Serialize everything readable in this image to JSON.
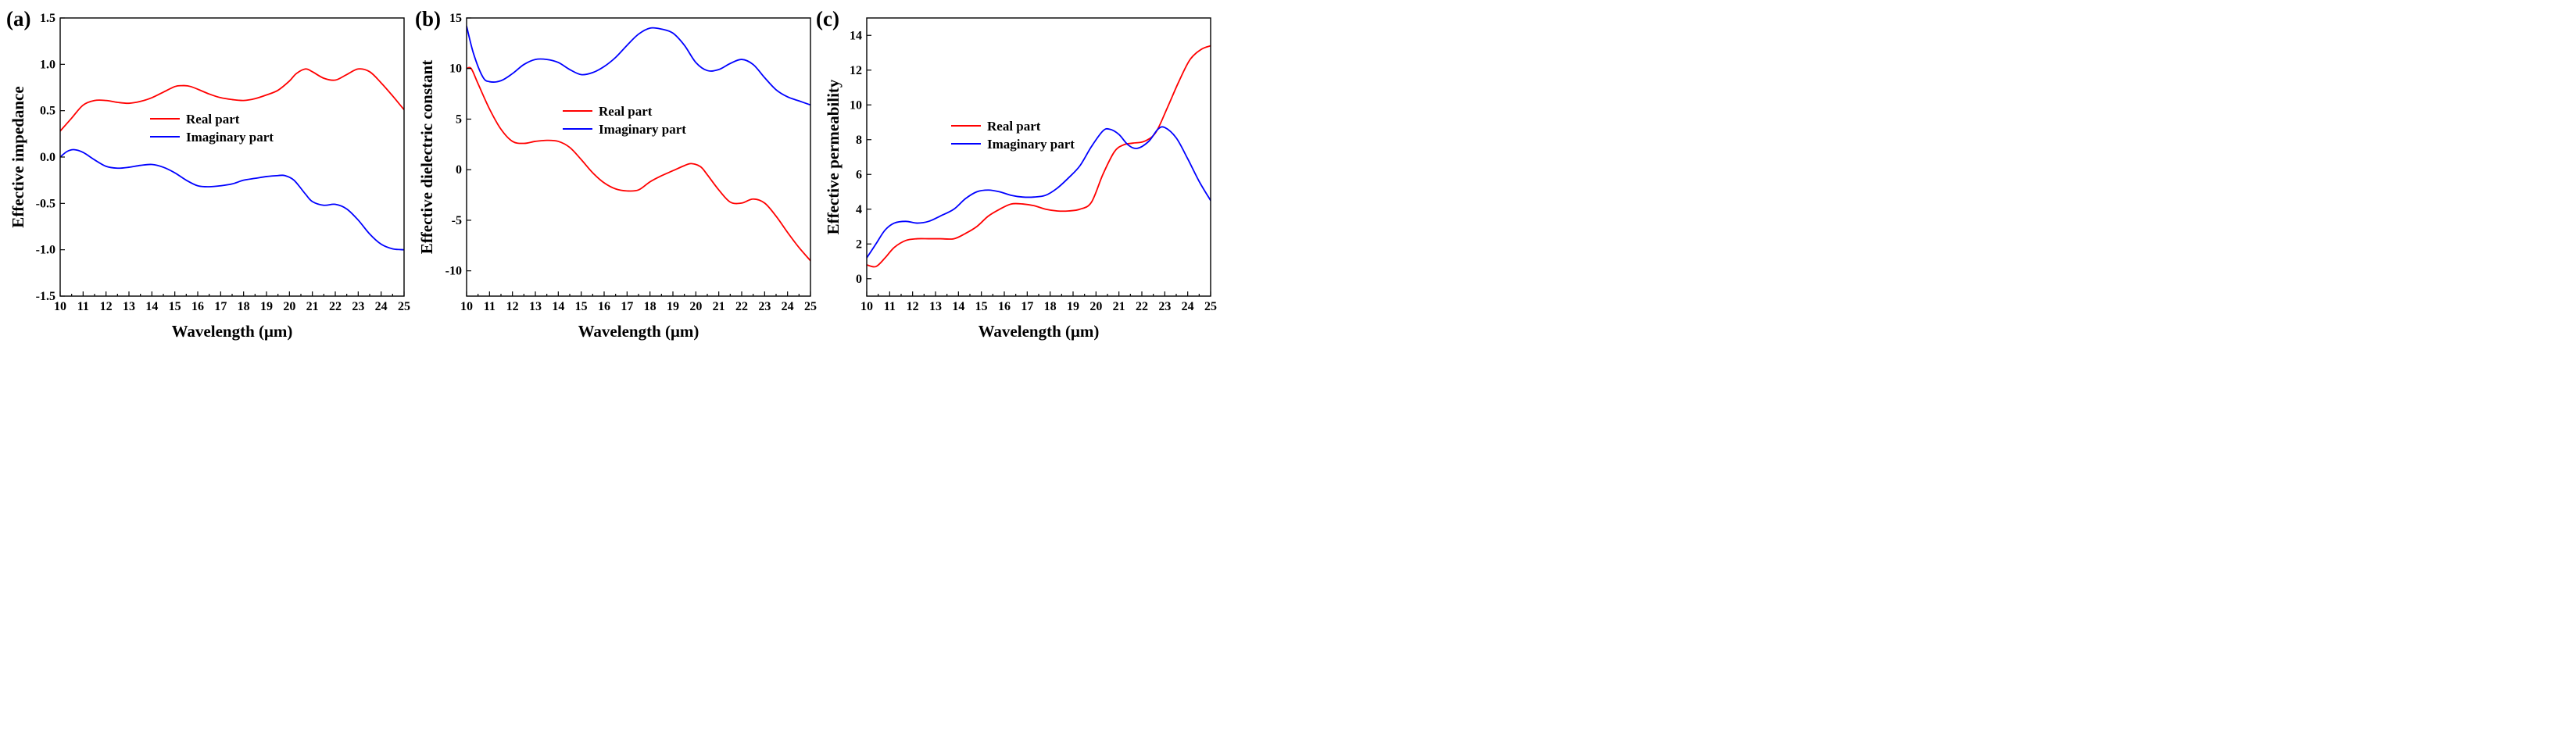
{
  "colors": {
    "real": "#ff0000",
    "imag": "#0000ff",
    "axis": "#000000"
  },
  "chart_data": [
    {
      "type": "line",
      "panel_label": "(a)",
      "xlabel": "Wavelength (μm)",
      "ylabel": "Effective impedance",
      "xlim": [
        10,
        25
      ],
      "ylim": [
        -1.5,
        1.5
      ],
      "x_ticks": [
        10,
        11,
        12,
        13,
        14,
        15,
        16,
        17,
        18,
        19,
        20,
        21,
        22,
        23,
        24,
        25
      ],
      "x_tick_labels": [
        "10",
        "11",
        "12",
        "13",
        "14",
        "15",
        "16",
        "17",
        "18",
        "19",
        "20",
        "21",
        "22",
        "23",
        "24",
        "25"
      ],
      "y_ticks": [
        -1.5,
        -1.0,
        -0.5,
        0.0,
        0.5,
        1.0,
        1.5
      ],
      "y_tick_labels": [
        "-1.5",
        "-1.0",
        "-0.5",
        "0.0",
        "0.5",
        "1.0",
        "1.5"
      ],
      "legend_position": "center",
      "series": [
        {
          "name": "Real part",
          "color": "#ff0000",
          "x": [
            10,
            10.5,
            11,
            11.5,
            12,
            12.5,
            13,
            13.5,
            14,
            14.5,
            15,
            15.3,
            15.7,
            16.5,
            17,
            17.5,
            18,
            18.5,
            19,
            19.5,
            20,
            20.3,
            20.7,
            21,
            21.5,
            22,
            22.5,
            23,
            23.5,
            24,
            24.5,
            25
          ],
          "values": [
            0.28,
            0.42,
            0.56,
            0.61,
            0.61,
            0.59,
            0.58,
            0.6,
            0.64,
            0.7,
            0.76,
            0.77,
            0.76,
            0.68,
            0.64,
            0.62,
            0.61,
            0.63,
            0.67,
            0.72,
            0.82,
            0.9,
            0.95,
            0.92,
            0.85,
            0.83,
            0.89,
            0.95,
            0.92,
            0.8,
            0.66,
            0.51
          ]
        },
        {
          "name": "Imaginary part",
          "color": "#0000ff",
          "x": [
            10,
            10.3,
            10.6,
            11,
            11.5,
            12,
            12.5,
            13,
            13.5,
            14,
            14.5,
            15,
            15.5,
            16,
            16.5,
            17,
            17.5,
            18,
            18.5,
            19,
            19.5,
            19.8,
            20.2,
            20.7,
            21,
            21.5,
            22,
            22.5,
            23,
            23.5,
            24,
            24.5,
            25
          ],
          "values": [
            0.0,
            0.06,
            0.08,
            0.05,
            -0.03,
            -0.1,
            -0.12,
            -0.11,
            -0.09,
            -0.08,
            -0.11,
            -0.17,
            -0.25,
            -0.31,
            -0.32,
            -0.31,
            -0.29,
            -0.25,
            -0.23,
            -0.21,
            -0.2,
            -0.2,
            -0.25,
            -0.4,
            -0.48,
            -0.52,
            -0.51,
            -0.56,
            -0.68,
            -0.83,
            -0.94,
            -0.99,
            -1.0
          ]
        }
      ]
    },
    {
      "type": "line",
      "panel_label": "(b)",
      "xlabel": "Wavelength (μm)",
      "ylabel": "Effective dielectric constant",
      "xlim": [
        10,
        25
      ],
      "ylim": [
        -12.5,
        15
      ],
      "x_ticks": [
        10,
        11,
        12,
        13,
        14,
        15,
        16,
        17,
        18,
        19,
        20,
        21,
        22,
        23,
        24,
        25
      ],
      "x_tick_labels": [
        "10",
        "11",
        "12",
        "13",
        "14",
        "15",
        "16",
        "17",
        "18",
        "19",
        "20",
        "21",
        "22",
        "23",
        "24",
        "25"
      ],
      "y_ticks": [
        -10,
        -5,
        0,
        5,
        10,
        15
      ],
      "y_tick_labels": [
        "-10",
        "-5",
        "0",
        "5",
        "10",
        "15"
      ],
      "legend_position": "center",
      "series": [
        {
          "name": "Real part",
          "color": "#ff0000",
          "x": [
            10,
            10.2,
            10.5,
            11,
            11.5,
            12,
            12.5,
            13,
            13.5,
            14,
            14.5,
            15,
            15.5,
            16,
            16.5,
            17,
            17.5,
            18,
            18.5,
            19,
            19.5,
            19.8,
            20.2,
            20.5,
            21,
            21.5,
            22,
            22.5,
            23,
            23.5,
            24,
            24.5,
            25
          ],
          "values": [
            10,
            10,
            8.5,
            6.0,
            4.0,
            2.8,
            2.6,
            2.8,
            2.9,
            2.8,
            2.2,
            1.0,
            -0.3,
            -1.3,
            -1.9,
            -2.1,
            -2.0,
            -1.2,
            -0.6,
            -0.1,
            0.4,
            0.6,
            0.3,
            -0.5,
            -2.0,
            -3.2,
            -3.3,
            -2.9,
            -3.3,
            -4.6,
            -6.2,
            -7.7,
            -9.0
          ]
        },
        {
          "name": "Imaginary part",
          "color": "#0000ff",
          "x": [
            10,
            10.3,
            10.7,
            11,
            11.5,
            12,
            12.5,
            13,
            13.5,
            14,
            14.5,
            15,
            15.5,
            16,
            16.5,
            17,
            17.5,
            18,
            18.5,
            19,
            19.5,
            20,
            20.5,
            21,
            21.5,
            22,
            22.5,
            23,
            23.5,
            24,
            24.5,
            25
          ],
          "values": [
            14.2,
            11.5,
            9.2,
            8.7,
            8.8,
            9.5,
            10.4,
            10.9,
            10.9,
            10.6,
            9.9,
            9.4,
            9.6,
            10.2,
            11.1,
            12.3,
            13.4,
            14.0,
            13.9,
            13.5,
            12.3,
            10.6,
            9.8,
            9.9,
            10.5,
            10.9,
            10.4,
            9.1,
            7.9,
            7.2,
            6.8,
            6.4
          ]
        }
      ]
    },
    {
      "type": "line",
      "panel_label": "(c)",
      "xlabel": "Wavelength (μm)",
      "ylabel": "Effective permeability",
      "xlim": [
        10,
        25
      ],
      "ylim": [
        -1,
        15
      ],
      "x_ticks": [
        10,
        11,
        12,
        13,
        14,
        15,
        16,
        17,
        18,
        19,
        20,
        21,
        22,
        23,
        24,
        25
      ],
      "x_tick_labels": [
        "10",
        "11",
        "12",
        "13",
        "14",
        "15",
        "16",
        "17",
        "18",
        "19",
        "20",
        "21",
        "22",
        "23",
        "24",
        "25"
      ],
      "y_ticks": [
        0,
        2,
        4,
        6,
        8,
        10,
        12,
        14
      ],
      "y_tick_labels": [
        "0",
        "2",
        "4",
        "6",
        "8",
        "10",
        "12",
        "14"
      ],
      "legend_position": "center",
      "series": [
        {
          "name": "Real part",
          "color": "#ff0000",
          "x": [
            10,
            10.4,
            10.8,
            11.2,
            11.7,
            12.2,
            12.7,
            13.2,
            13.8,
            14.3,
            14.8,
            15.3,
            15.8,
            16.3,
            16.8,
            17.3,
            17.8,
            18.3,
            18.8,
            19.3,
            19.8,
            20.3,
            20.8,
            21.2,
            21.6,
            22.1,
            22.6,
            23.1,
            23.6,
            24.1,
            24.6,
            25
          ],
          "values": [
            0.8,
            0.7,
            1.2,
            1.8,
            2.2,
            2.3,
            2.3,
            2.3,
            2.3,
            2.6,
            3.0,
            3.6,
            4.0,
            4.3,
            4.3,
            4.2,
            4.0,
            3.9,
            3.9,
            4.0,
            4.4,
            6.0,
            7.3,
            7.7,
            7.8,
            7.9,
            8.4,
            9.8,
            11.3,
            12.6,
            13.2,
            13.4
          ]
        },
        {
          "name": "Imaginary part",
          "color": "#0000ff",
          "x": [
            10,
            10.4,
            10.8,
            11.2,
            11.7,
            12.2,
            12.7,
            13.2,
            13.8,
            14.3,
            14.8,
            15.3,
            15.8,
            16.3,
            16.8,
            17.3,
            17.8,
            18.3,
            18.8,
            19.3,
            19.8,
            20.3,
            20.6,
            21.0,
            21.4,
            21.8,
            22.3,
            22.7,
            23.0,
            23.5,
            24.0,
            24.5,
            25
          ],
          "values": [
            1.2,
            2.0,
            2.8,
            3.2,
            3.3,
            3.2,
            3.3,
            3.6,
            4.0,
            4.6,
            5.0,
            5.1,
            5.0,
            4.8,
            4.7,
            4.7,
            4.8,
            5.2,
            5.8,
            6.5,
            7.6,
            8.5,
            8.6,
            8.3,
            7.7,
            7.5,
            7.9,
            8.6,
            8.7,
            8.1,
            6.9,
            5.6,
            4.5
          ]
        }
      ]
    }
  ]
}
